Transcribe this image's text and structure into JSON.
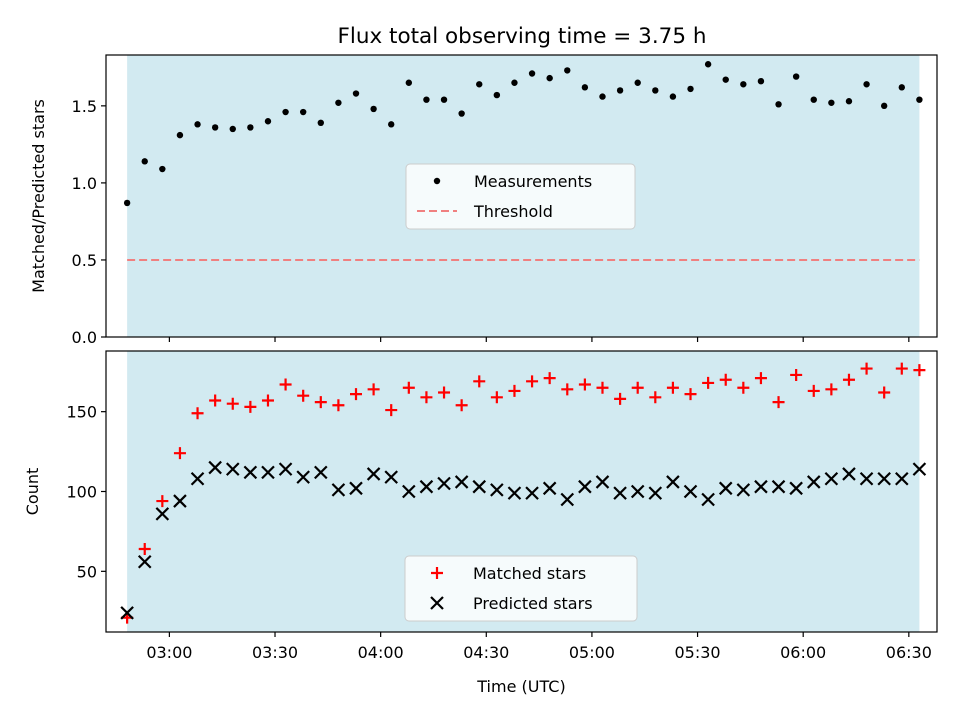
{
  "title": "Flux total observing time = 3.75 h",
  "colors": {
    "shade": "#add8e6",
    "measurement": "#000000",
    "threshold": "#f08080",
    "matched": "#ff0000",
    "predicted": "#000000"
  },
  "chart_data": [
    {
      "type": "scatter",
      "ylabel": "Matched/Predicted stars",
      "xlabel": "",
      "ylim": [
        0,
        1.83
      ],
      "yticks": [
        0.0,
        0.5,
        1.0,
        1.5
      ],
      "ytick_labels": [
        "0.0",
        "0.5",
        "1.0",
        "1.5"
      ],
      "legend": [
        "Measurements",
        "Threshold"
      ],
      "legend_position": "center",
      "threshold": 0.5,
      "shaded_span": [
        "02:48",
        "06:33"
      ],
      "series": [
        {
          "name": "Measurements",
          "marker": "dot",
          "x": [
            "02:48",
            "02:53",
            "02:58",
            "03:03",
            "03:08",
            "03:13",
            "03:18",
            "03:23",
            "03:28",
            "03:33",
            "03:38",
            "03:43",
            "03:48",
            "03:53",
            "03:58",
            "04:03",
            "04:08",
            "04:13",
            "04:18",
            "04:23",
            "04:28",
            "04:33",
            "04:38",
            "04:43",
            "04:48",
            "04:53",
            "04:58",
            "05:03",
            "05:08",
            "05:13",
            "05:18",
            "05:23",
            "05:28",
            "05:33",
            "05:38",
            "05:43",
            "05:48",
            "05:53",
            "05:58",
            "06:03",
            "06:08",
            "06:13",
            "06:18",
            "06:23",
            "06:28",
            "06:33"
          ],
          "y": [
            0.87,
            1.14,
            1.09,
            1.31,
            1.38,
            1.36,
            1.35,
            1.36,
            1.4,
            1.46,
            1.46,
            1.39,
            1.52,
            1.58,
            1.48,
            1.38,
            1.65,
            1.54,
            1.54,
            1.45,
            1.64,
            1.57,
            1.65,
            1.71,
            1.68,
            1.73,
            1.62,
            1.56,
            1.6,
            1.65,
            1.6,
            1.56,
            1.61,
            1.77,
            1.67,
            1.64,
            1.66,
            1.51,
            1.69,
            1.54,
            1.52,
            1.53,
            1.64,
            1.5,
            1.62,
            1.54
          ]
        }
      ]
    },
    {
      "type": "scatter",
      "ylabel": "Count",
      "xlabel": "Time (UTC)",
      "ylim": [
        12,
        188
      ],
      "yticks": [
        50,
        100,
        150
      ],
      "ytick_labels": [
        "50",
        "100",
        "150"
      ],
      "xticks": [
        "03:00",
        "03:30",
        "04:00",
        "04:30",
        "05:00",
        "05:30",
        "06:00",
        "06:30"
      ],
      "legend": [
        "Matched stars",
        "Predicted stars"
      ],
      "legend_position": "lower center",
      "shaded_span": [
        "02:48",
        "06:33"
      ],
      "series": [
        {
          "name": "Matched stars",
          "marker": "plus",
          "x": [
            "02:48",
            "02:53",
            "02:58",
            "03:03",
            "03:08",
            "03:13",
            "03:18",
            "03:23",
            "03:28",
            "03:33",
            "03:38",
            "03:43",
            "03:48",
            "03:53",
            "03:58",
            "04:03",
            "04:08",
            "04:13",
            "04:18",
            "04:23",
            "04:28",
            "04:33",
            "04:38",
            "04:43",
            "04:48",
            "04:53",
            "04:58",
            "05:03",
            "05:08",
            "05:13",
            "05:18",
            "05:23",
            "05:28",
            "05:33",
            "05:38",
            "05:43",
            "05:48",
            "05:53",
            "05:58",
            "06:03",
            "06:08",
            "06:13",
            "06:18",
            "06:23",
            "06:28",
            "06:33"
          ],
          "y": [
            21,
            64,
            94,
            124,
            149,
            157,
            155,
            153,
            157,
            167,
            160,
            156,
            154,
            161,
            164,
            151,
            165,
            159,
            162,
            154,
            169,
            159,
            163,
            169,
            171,
            164,
            167,
            165,
            158,
            165,
            159,
            165,
            161,
            168,
            170,
            165,
            171,
            156,
            173,
            163,
            164,
            170,
            177,
            162,
            177,
            176
          ]
        },
        {
          "name": "Predicted stars",
          "marker": "x",
          "x": [
            "02:48",
            "02:53",
            "02:58",
            "03:03",
            "03:08",
            "03:13",
            "03:18",
            "03:23",
            "03:28",
            "03:33",
            "03:38",
            "03:43",
            "03:48",
            "03:53",
            "03:58",
            "04:03",
            "04:08",
            "04:13",
            "04:18",
            "04:23",
            "04:28",
            "04:33",
            "04:38",
            "04:43",
            "04:48",
            "04:53",
            "04:58",
            "05:03",
            "05:08",
            "05:13",
            "05:18",
            "05:23",
            "05:28",
            "05:33",
            "05:38",
            "05:43",
            "05:48",
            "05:53",
            "05:58",
            "06:03",
            "06:08",
            "06:13",
            "06:18",
            "06:23",
            "06:28",
            "06:33"
          ],
          "y": [
            24,
            56,
            86,
            94,
            108,
            115,
            114,
            112,
            112,
            114,
            109,
            112,
            101,
            102,
            111,
            109,
            100,
            103,
            105,
            106,
            103,
            101,
            99,
            99,
            102,
            95,
            103,
            106,
            99,
            100,
            99,
            106,
            100,
            95,
            102,
            101,
            103,
            103,
            102,
            106,
            108,
            111,
            108,
            108,
            108,
            114
          ]
        }
      ]
    }
  ]
}
